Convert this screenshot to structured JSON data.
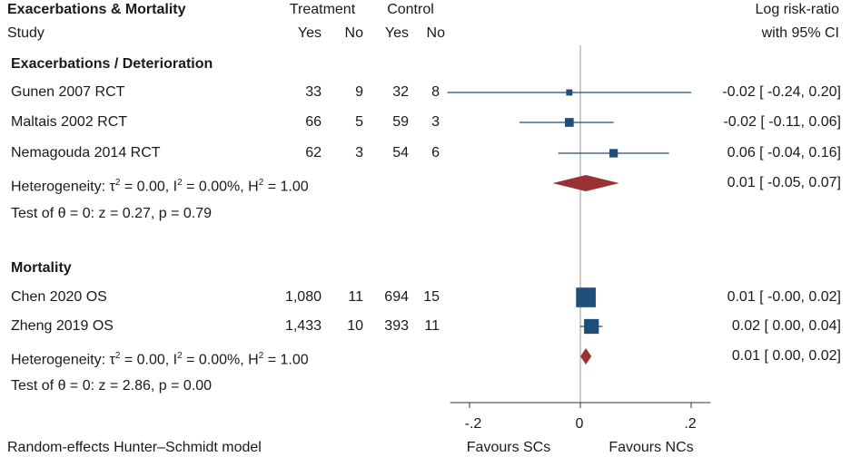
{
  "colors": {
    "study_line": "#1f4e79",
    "study_marker": "#1f4e79",
    "pooled_diamond": "#993333",
    "null_line": "#999999",
    "text": "#1a1a1a"
  },
  "chart_data": {
    "type": "forest",
    "title": "Exacerbations & Mortality",
    "headers": {
      "study": "Study",
      "treatment": "Treatment",
      "control": "Control",
      "yes": "Yes",
      "no": "No",
      "effect_line1": "Log risk-ratio",
      "effect_line2": "with 95% CI"
    },
    "x_axis": {
      "ticks": [
        -0.2,
        0,
        0.2
      ],
      "tick_labels": [
        "-.2",
        "0",
        ".2"
      ],
      "xlim": [
        -0.235,
        0.235
      ],
      "left_label": "Favours SCs",
      "right_label": "Favours NCs"
    },
    "footer": "Random-effects Hunter–Schmidt model",
    "groups": [
      {
        "name": "Exacerbations / Deterioration",
        "studies": [
          {
            "name": "Gunen 2007 RCT",
            "t_yes": "33",
            "t_no": "9",
            "c_yes": "32",
            "c_no": "8",
            "est": -0.02,
            "lo": -0.24,
            "hi": 0.2,
            "weight": 0.3,
            "ci_text": "-0.02 [ -0.24,  0.20]"
          },
          {
            "name": "Maltais 2002 RCT",
            "t_yes": "66",
            "t_no": "5",
            "c_yes": "59",
            "c_no": "3",
            "est": -0.02,
            "lo": -0.11,
            "hi": 0.06,
            "weight": 0.6,
            "ci_text": "-0.02 [ -0.11,  0.06]"
          },
          {
            "name": "Nemagouda 2014 RCT",
            "t_yes": "62",
            "t_no": "3",
            "c_yes": "54",
            "c_no": "6",
            "est": 0.06,
            "lo": -0.04,
            "hi": 0.16,
            "weight": 0.55,
            "ci_text": "0.06 [ -0.04,  0.16]"
          }
        ],
        "heterogeneity": {
          "prefix": "Heterogeneity: τ",
          "tau_sup": "2",
          "mid1": " = 0.00, I",
          "i_sup": "2",
          "mid2": " = 0.00%, H",
          "h_sup": "2",
          "suffix": " = 1.00"
        },
        "pooled": {
          "est": 0.01,
          "lo": -0.05,
          "hi": 0.07,
          "ci_text": "0.01 [ -0.05,  0.07]"
        },
        "test": "Test of θ = 0: z = 0.27, p = 0.79"
      },
      {
        "name": "Mortality",
        "studies": [
          {
            "name": "Chen 2020 OS",
            "t_yes": "1,080",
            "t_no": "11",
            "c_yes": "694",
            "c_no": "15",
            "est": 0.01,
            "lo": -0.0,
            "hi": 0.02,
            "weight": 3.0,
            "ci_text": "0.01 [ -0.00,  0.02]"
          },
          {
            "name": "Zheng 2019 OS",
            "t_yes": "1,433",
            "t_no": "10",
            "c_yes": "393",
            "c_no": "11",
            "est": 0.02,
            "lo": 0.0,
            "hi": 0.04,
            "weight": 1.7,
            "ci_text": "0.02 [  0.00,  0.04]"
          }
        ],
        "heterogeneity": {
          "prefix": "Heterogeneity: τ",
          "tau_sup": "2",
          "mid1": " = 0.00, I",
          "i_sup": "2",
          "mid2": " = 0.00%, H",
          "h_sup": "2",
          "suffix": " = 1.00"
        },
        "pooled": {
          "est": 0.01,
          "lo": 0.0,
          "hi": 0.02,
          "ci_text": "0.01 [  0.00,  0.02]"
        },
        "test": "Test of θ = 0: z = 2.86, p = 0.00"
      }
    ]
  }
}
